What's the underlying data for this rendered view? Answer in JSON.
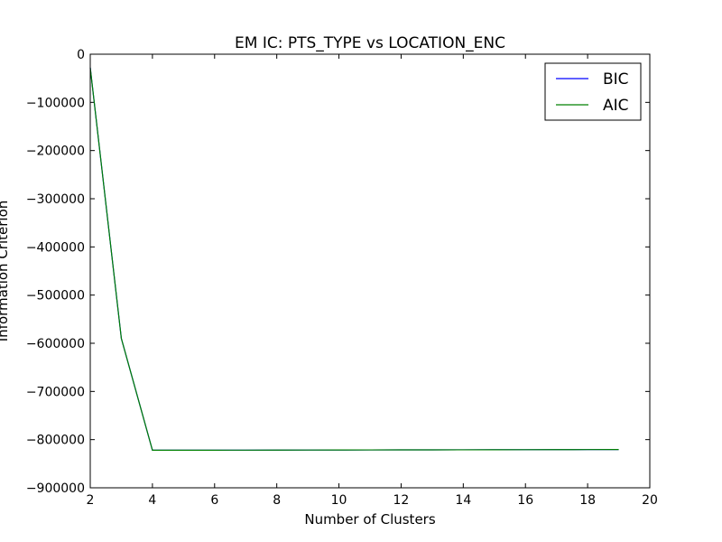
{
  "chart_data": {
    "type": "line",
    "title": "EM IC: PTS_TYPE vs LOCATION_ENC",
    "xlabel": "Number of Clusters",
    "ylabel": "Information Criterion",
    "xlim": [
      2,
      20
    ],
    "ylim": [
      -900000,
      0
    ],
    "xticks": [
      2,
      4,
      6,
      8,
      10,
      12,
      14,
      16,
      18,
      20
    ],
    "yticks": [
      0,
      -100000,
      -200000,
      -300000,
      -400000,
      -500000,
      -600000,
      -700000,
      -800000,
      -900000
    ],
    "xtick_labels": [
      "2",
      "4",
      "6",
      "8",
      "10",
      "12",
      "14",
      "16",
      "18",
      "20"
    ],
    "ytick_labels": [
      "0",
      "−100000",
      "−200000",
      "−300000",
      "−400000",
      "−500000",
      "−600000",
      "−700000",
      "−800000",
      "−900000"
    ],
    "grid": false,
    "legend_position": "top-right",
    "x": [
      2,
      3,
      4,
      5,
      6,
      7,
      8,
      9,
      10,
      11,
      12,
      13,
      14,
      15,
      16,
      17,
      18,
      19
    ],
    "series": [
      {
        "name": "BIC",
        "color": "#0000ff",
        "values": [
          -28000,
          -590000,
          -822000,
          -822000,
          -821900,
          -821800,
          -821700,
          -821600,
          -821500,
          -821400,
          -821300,
          -821200,
          -821100,
          -821000,
          -820900,
          -820800,
          -820700,
          -820600
        ]
      },
      {
        "name": "AIC",
        "color": "#008000",
        "values": [
          -28000,
          -590000,
          -822000,
          -822000,
          -821900,
          -821800,
          -821700,
          -821600,
          -821500,
          -821400,
          -821300,
          -821200,
          -821100,
          -821000,
          -820900,
          -820800,
          -820700,
          -820600
        ]
      }
    ]
  }
}
